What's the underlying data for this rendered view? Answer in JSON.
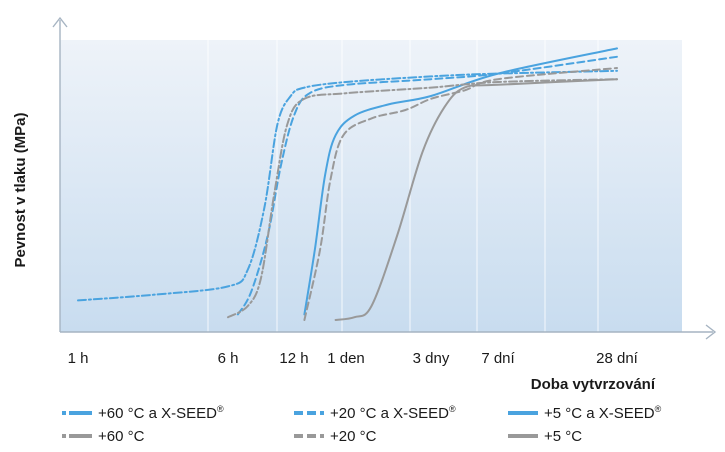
{
  "chart_data": {
    "type": "line",
    "title": "",
    "xlabel": "Doba vytvrzování",
    "ylabel": "Pevnost v tlaku (MPa)",
    "x_categories": [
      "1 h",
      "6 h",
      "12 h",
      "1 den",
      "3 dny",
      "7 dní",
      "28 dní"
    ],
    "grid": "vertical",
    "legend_position": "bottom",
    "colors": {
      "xseed": "#4aa3df",
      "plain": "#999999",
      "background_top": "#eaf1f8",
      "background_bottom": "#c9dcef"
    },
    "series": [
      {
        "name": "+60 °C a X-SEED",
        "style": "dashdot",
        "group": "xseed",
        "points": [
          [
            0,
            0.07
          ],
          [
            0.5,
            0.09
          ],
          [
            1,
            0.12
          ],
          [
            1.3,
            0.18
          ],
          [
            1.55,
            0.4
          ],
          [
            1.75,
            0.7
          ],
          [
            1.95,
            0.8
          ],
          [
            2.2,
            0.83
          ],
          [
            3,
            0.85
          ],
          [
            4,
            0.87
          ],
          [
            5,
            0.88
          ],
          [
            6,
            0.89
          ]
        ]
      },
      {
        "name": "+20 °C a X-SEED",
        "style": "dashed",
        "group": "xseed",
        "points": [
          [
            1.15,
            0.02
          ],
          [
            1.35,
            0.1
          ],
          [
            1.6,
            0.3
          ],
          [
            1.8,
            0.55
          ],
          [
            2,
            0.73
          ],
          [
            2.3,
            0.81
          ],
          [
            3,
            0.84
          ],
          [
            4,
            0.86
          ],
          [
            5,
            0.88
          ],
          [
            6,
            0.94
          ]
        ]
      },
      {
        "name": "+5 °C a X-SEED",
        "style": "solid",
        "group": "xseed",
        "points": [
          [
            2.2,
            0.02
          ],
          [
            2.4,
            0.25
          ],
          [
            2.6,
            0.52
          ],
          [
            2.8,
            0.66
          ],
          [
            3.1,
            0.73
          ],
          [
            3.5,
            0.77
          ],
          [
            4,
            0.8
          ],
          [
            5,
            0.88
          ],
          [
            6,
            0.97
          ]
        ]
      },
      {
        "name": "+60 °C",
        "style": "dashdot",
        "group": "plain",
        "points": [
          [
            1,
            0.01
          ],
          [
            1.3,
            0.05
          ],
          [
            1.5,
            0.15
          ],
          [
            1.7,
            0.45
          ],
          [
            1.9,
            0.7
          ],
          [
            2.2,
            0.79
          ],
          [
            3,
            0.81
          ],
          [
            4,
            0.83
          ],
          [
            5,
            0.85
          ],
          [
            6,
            0.86
          ]
        ]
      },
      {
        "name": "+20 °C",
        "style": "dashed",
        "group": "plain",
        "points": [
          [
            2.2,
            0.0
          ],
          [
            2.5,
            0.25
          ],
          [
            2.7,
            0.5
          ],
          [
            2.95,
            0.66
          ],
          [
            3.3,
            0.72
          ],
          [
            3.7,
            0.75
          ],
          [
            4,
            0.79
          ],
          [
            4.5,
            0.82
          ],
          [
            5,
            0.86
          ],
          [
            6,
            0.9
          ]
        ]
      },
      {
        "name": "+5 °C",
        "style": "solid",
        "group": "plain",
        "points": [
          [
            2.8,
            0.0
          ],
          [
            3.1,
            0.01
          ],
          [
            3.3,
            0.05
          ],
          [
            3.6,
            0.3
          ],
          [
            3.9,
            0.6
          ],
          [
            4.2,
            0.76
          ],
          [
            4.5,
            0.83
          ],
          [
            5,
            0.84
          ],
          [
            6,
            0.86
          ]
        ]
      }
    ]
  },
  "legend": {
    "registered_mark": "®",
    "items": [
      {
        "label": "+60 °C a X-SEED",
        "sup": true,
        "color": "#4aa3df",
        "style": "dashdot"
      },
      {
        "label": "+20 °C a X-SEED",
        "sup": true,
        "color": "#4aa3df",
        "style": "dashed"
      },
      {
        "label": "+5 °C a X-SEED",
        "sup": true,
        "color": "#4aa3df",
        "style": "solid"
      },
      {
        "label": "+60 °C",
        "sup": false,
        "color": "#999999",
        "style": "dashdot"
      },
      {
        "label": "+20 °C",
        "sup": false,
        "color": "#999999",
        "style": "dashed"
      },
      {
        "label": "+5 °C",
        "sup": false,
        "color": "#999999",
        "style": "solid"
      }
    ]
  }
}
